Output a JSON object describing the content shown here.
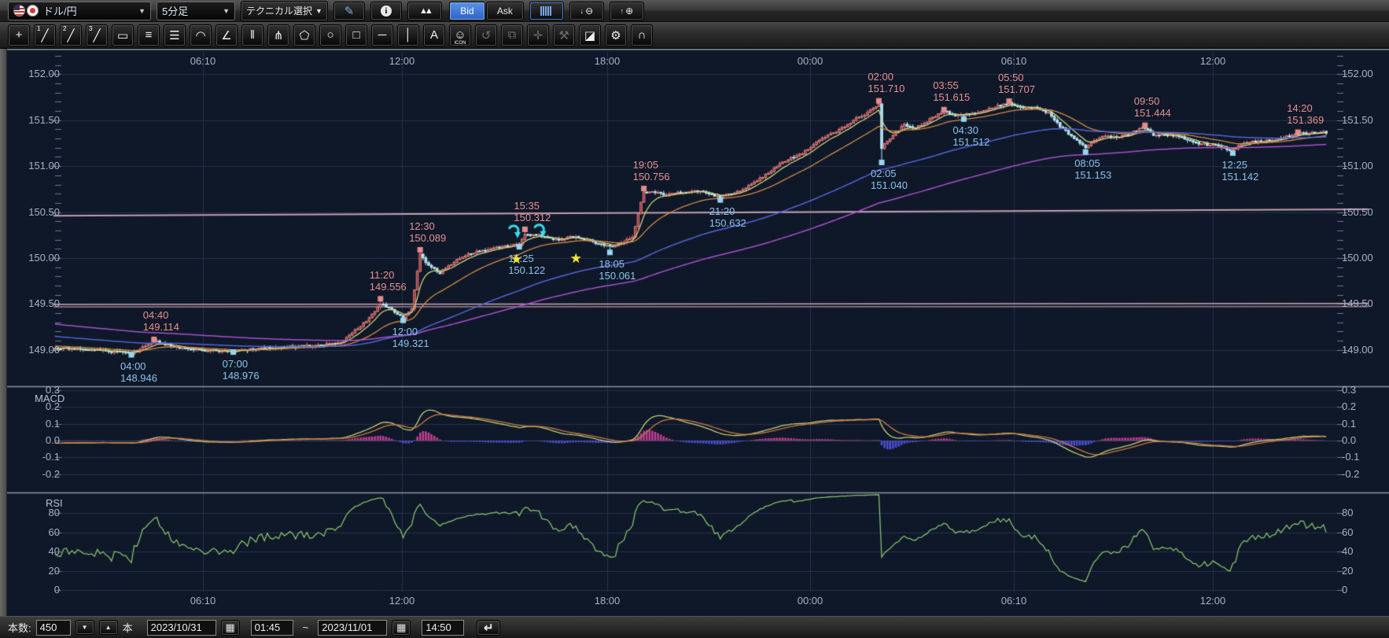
{
  "toolbar_top": {
    "symbol": {
      "value": "ドル/円"
    },
    "timeframe": {
      "value": "5分足"
    },
    "technical_label": "テクニカル選択",
    "bid_label": "Bid",
    "ask_label": "Ask"
  },
  "drawing_toolbar": {
    "tools": [
      {
        "name": "crosshair-tool",
        "glyph": "+"
      },
      {
        "name": "trendline1-tool",
        "glyph": "╱",
        "badge": "1"
      },
      {
        "name": "trendline2-tool",
        "glyph": "╱",
        "badge": "2"
      },
      {
        "name": "trendline3-tool",
        "glyph": "╱",
        "badge": "3"
      },
      {
        "name": "ruler-tool",
        "glyph": "▭"
      },
      {
        "name": "parallel-lines-tool",
        "glyph": "≡"
      },
      {
        "name": "fibo-lines-tool",
        "glyph": "☰"
      },
      {
        "name": "arc-tool",
        "glyph": "◠"
      },
      {
        "name": "fan-lines-tool",
        "glyph": "∠"
      },
      {
        "name": "vertical-lines-tool",
        "glyph": "‖"
      },
      {
        "name": "pitchfork-tool",
        "glyph": "⋔"
      },
      {
        "name": "pentagon-tool",
        "glyph": "⬠"
      },
      {
        "name": "ellipse-tool",
        "glyph": "○"
      },
      {
        "name": "rectangle-tool",
        "glyph": "□"
      },
      {
        "name": "horizontal-line-tool",
        "glyph": "─"
      },
      {
        "name": "vertical-line-tool",
        "glyph": "│"
      },
      {
        "name": "text-tool",
        "glyph": "A"
      },
      {
        "name": "icon-stamp-tool",
        "glyph": "☺",
        "sub": "ICON"
      },
      {
        "name": "history-tool",
        "glyph": "↺",
        "disabled": true
      },
      {
        "name": "copy-tool",
        "glyph": "⧉",
        "disabled": true
      },
      {
        "name": "pan-tool",
        "glyph": "✛",
        "disabled": true
      },
      {
        "name": "adjust-tool",
        "glyph": "⚒",
        "disabled": true
      },
      {
        "name": "eraser-tool",
        "glyph": "◪"
      },
      {
        "name": "settings-tool",
        "glyph": "⚙"
      },
      {
        "name": "magnet-tool",
        "glyph": "∩"
      }
    ]
  },
  "bottom_toolbar": {
    "bars_label": "本数:",
    "bars_value": "450",
    "bars_unit": "本",
    "date_from": "2023/10/31",
    "time_from": "01:45",
    "range_separator": "~",
    "date_to": "2023/11/01",
    "time_to": "14:50"
  },
  "chart_data": {
    "type": "candlestick+indicators",
    "symbol": "USD/JPY 5min",
    "bars": 450,
    "grid": true,
    "colors": {
      "bg": "#0f1828",
      "grid": "#26314a",
      "grid_zero": "#3a4660",
      "separator": "#8f949e",
      "axis_text": "#a9b2c4",
      "tick": "#6b7690",
      "bull_fill": "#8a3842",
      "bull_stroke": "#e27c7c",
      "bear_fill": "#a9dcee",
      "bear_stroke": "#bce8f5",
      "ma_fast": "#c6d37e",
      "ma_mid": "#cf8a48",
      "ma_slow": "#5463d8",
      "ma_slowest": "#a94fd0",
      "hline_pink": "#c49fb4",
      "hline_pink2": "#c9a4b6",
      "hline_gray": "#8d7383",
      "hist_pos": "#c13d92",
      "hist_neg": "#4d4ed2",
      "macd_line": "#c3cf74",
      "macd_signal": "#cd7947",
      "rsi_line": "#84c06c",
      "sig_high": "#e89090",
      "sig_low": "#8ac4ec",
      "marker_high": "#e58b8b",
      "marker_low": "#97d5f2",
      "star": "#f2e23c",
      "arrow": "#3ad8ea"
    },
    "time_axis": {
      "ticks": [
        {
          "label": "06:10",
          "x": 258
        },
        {
          "label": "12:00",
          "x": 511
        },
        {
          "label": "18:00",
          "x": 772
        },
        {
          "label": "00:00",
          "x": 1030
        },
        {
          "label": "06:10",
          "x": 1289
        },
        {
          "label": "12:00",
          "x": 1542
        }
      ]
    },
    "price_axis": {
      "ylim": [
        148.604,
        152.277
      ],
      "ticks": [
        {
          "label": "152.00",
          "value": 152.0
        },
        {
          "label": "151.50",
          "value": 151.5
        },
        {
          "label": "151.00",
          "value": 151.0
        },
        {
          "label": "150.50",
          "value": 150.5
        },
        {
          "label": "150.00",
          "value": 150.0
        },
        {
          "label": "149.50",
          "value": 149.5
        },
        {
          "label": "149.00",
          "value": 149.0
        }
      ],
      "minor_step": 0.1
    },
    "macd": {
      "label": "MACD",
      "params": [
        12,
        26,
        9
      ],
      "ylim": [
        -0.31,
        0.324
      ],
      "ticks": [
        {
          "label": "0.3",
          "value": 0.3
        },
        {
          "label": "0.2",
          "value": 0.2
        },
        {
          "label": "0.1",
          "value": 0.1
        },
        {
          "label": "0.0",
          "value": 0.0
        },
        {
          "label": "-0.1",
          "value": -0.1
        },
        {
          "label": "-0.2",
          "value": -0.2
        }
      ]
    },
    "rsi": {
      "label": "RSI",
      "params": [
        14
      ],
      "ylim": [
        -1.4,
        101.5
      ],
      "ticks": [
        {
          "label": "80",
          "value": 80
        },
        {
          "label": "60",
          "value": 60
        },
        {
          "label": "40",
          "value": 40
        },
        {
          "label": "20",
          "value": 20
        },
        {
          "label": "0",
          "value": 0
        }
      ]
    },
    "moving_averages": [
      {
        "name": "ema-fast",
        "period": 7,
        "color_key": "ma_fast",
        "width": 1.3
      },
      {
        "name": "ema-mid",
        "period": 26,
        "color_key": "ma_mid",
        "width": 1.3
      },
      {
        "name": "ema-slow",
        "period": 95,
        "color_key": "ma_slow",
        "width": 1.5
      },
      {
        "name": "ema-slowest",
        "period": 170,
        "color_key": "ma_slowest",
        "width": 1.5
      }
    ],
    "horizontal_lines": [
      {
        "p1": 150.46,
        "p2": 150.53,
        "color_key": "hline_pink",
        "width": 2
      },
      {
        "p1": 149.495,
        "p2": 149.505,
        "color_key": "hline_pink2",
        "width": 1.6
      },
      {
        "p1": 149.468,
        "p2": 149.472,
        "color_key": "hline_gray",
        "width": 1.6
      }
    ],
    "price_anchors": [
      [
        -240,
        150.1
      ],
      [
        -160,
        149.55
      ],
      [
        -80,
        149.22
      ],
      [
        -30,
        149.08
      ],
      [
        0,
        149.02
      ],
      [
        14,
        149.0
      ],
      [
        27,
        148.96
      ],
      [
        35,
        149.1
      ],
      [
        44,
        149.02
      ],
      [
        55,
        148.99
      ],
      [
        63,
        148.99
      ],
      [
        75,
        149.02
      ],
      [
        88,
        149.04
      ],
      [
        100,
        149.07
      ],
      [
        108,
        149.25
      ],
      [
        115,
        149.5
      ],
      [
        119,
        149.44
      ],
      [
        123,
        149.34
      ],
      [
        126,
        149.45
      ],
      [
        129,
        150.04
      ],
      [
        132,
        149.92
      ],
      [
        136,
        149.84
      ],
      [
        141,
        149.96
      ],
      [
        147,
        150.05
      ],
      [
        154,
        150.1
      ],
      [
        160,
        150.13
      ],
      [
        164,
        150.15
      ],
      [
        166,
        150.26
      ],
      [
        171,
        150.25
      ],
      [
        177,
        150.2
      ],
      [
        183,
        150.23
      ],
      [
        189,
        150.18
      ],
      [
        194,
        150.14
      ],
      [
        196,
        150.12
      ],
      [
        199,
        150.15
      ],
      [
        204,
        150.22
      ],
      [
        207,
        150.6
      ],
      [
        208,
        150.71
      ],
      [
        211,
        150.72
      ],
      [
        216,
        150.69
      ],
      [
        221,
        150.71
      ],
      [
        227,
        150.73
      ],
      [
        231,
        150.7
      ],
      [
        235,
        150.66
      ],
      [
        240,
        150.71
      ],
      [
        246,
        150.8
      ],
      [
        252,
        150.93
      ],
      [
        258,
        151.06
      ],
      [
        264,
        151.14
      ],
      [
        270,
        151.29
      ],
      [
        276,
        151.37
      ],
      [
        282,
        151.5
      ],
      [
        287,
        151.58
      ],
      [
        291,
        151.68
      ],
      [
        292,
        151.2
      ],
      [
        294,
        151.28
      ],
      [
        297,
        151.36
      ],
      [
        300,
        151.45
      ],
      [
        304,
        151.41
      ],
      [
        308,
        151.49
      ],
      [
        311,
        151.54
      ],
      [
        314,
        151.6
      ],
      [
        317,
        151.56
      ],
      [
        321,
        151.55
      ],
      [
        326,
        151.59
      ],
      [
        330,
        151.62
      ],
      [
        334,
        151.66
      ],
      [
        337,
        151.68
      ],
      [
        342,
        151.64
      ],
      [
        347,
        151.63
      ],
      [
        351,
        151.58
      ],
      [
        355,
        151.43
      ],
      [
        359,
        151.33
      ],
      [
        362,
        151.26
      ],
      [
        364,
        151.21
      ],
      [
        367,
        151.27
      ],
      [
        371,
        151.33
      ],
      [
        375,
        151.31
      ],
      [
        379,
        151.34
      ],
      [
        382,
        151.39
      ],
      [
        385,
        151.42
      ],
      [
        388,
        151.34
      ],
      [
        392,
        151.33
      ],
      [
        396,
        151.34
      ],
      [
        400,
        151.29
      ],
      [
        404,
        151.25
      ],
      [
        408,
        151.23
      ],
      [
        412,
        151.21
      ],
      [
        414,
        151.18
      ],
      [
        416,
        151.18
      ],
      [
        419,
        151.23
      ],
      [
        423,
        151.27
      ],
      [
        427,
        151.27
      ],
      [
        431,
        151.29
      ],
      [
        435,
        151.32
      ],
      [
        439,
        151.35
      ],
      [
        444,
        151.36
      ],
      [
        449,
        151.37
      ]
    ],
    "signals": [
      {
        "time": "04:40",
        "price": "149.114",
        "bar": 35,
        "value": 149.114,
        "side": "high"
      },
      {
        "time": "11:20",
        "price": "149.556",
        "bar": 115,
        "value": 149.556,
        "side": "high"
      },
      {
        "time": "12:30",
        "price": "150.089",
        "bar": 129,
        "value": 150.089,
        "side": "high"
      },
      {
        "time": "15:35",
        "price": "150.312",
        "bar": 166,
        "value": 150.312,
        "side": "high"
      },
      {
        "time": "19:05",
        "price": "150.756",
        "bar": 208,
        "value": 150.756,
        "side": "high"
      },
      {
        "time": "02:00",
        "price": "151.710",
        "bar": 291,
        "value": 151.71,
        "side": "high"
      },
      {
        "time": "03:55",
        "price": "151.615",
        "bar": 314,
        "value": 151.615,
        "side": "high"
      },
      {
        "time": "05:50",
        "price": "151.707",
        "bar": 337,
        "value": 151.707,
        "side": "high"
      },
      {
        "time": "09:50",
        "price": "151.444",
        "bar": 385,
        "value": 151.444,
        "side": "high"
      },
      {
        "time": "14:20",
        "price": "151.369",
        "bar": 439,
        "value": 151.369,
        "side": "high"
      },
      {
        "time": "04:00",
        "price": "148.946",
        "bar": 27,
        "value": 148.946,
        "side": "low"
      },
      {
        "time": "07:00",
        "price": "148.976",
        "bar": 63,
        "value": 148.976,
        "side": "low"
      },
      {
        "time": "12:00",
        "price": "149.321",
        "bar": 123,
        "value": 149.321,
        "side": "low"
      },
      {
        "time": "15:25",
        "price": "150.122",
        "bar": 164,
        "value": 150.122,
        "side": "low"
      },
      {
        "time": "18:05",
        "price": "150.061",
        "bar": 196,
        "value": 150.061,
        "side": "low"
      },
      {
        "time": "21:20",
        "price": "150.632",
        "bar": 235,
        "value": 150.632,
        "side": "low"
      },
      {
        "time": "02:05",
        "price": "151.040",
        "bar": 292,
        "value": 151.04,
        "side": "low"
      },
      {
        "time": "04:30",
        "price": "151.512",
        "bar": 321,
        "value": 151.512,
        "side": "low"
      },
      {
        "time": "08:05",
        "price": "151.153",
        "bar": 364,
        "value": 151.153,
        "side": "low"
      },
      {
        "time": "12:25",
        "price": "151.142",
        "bar": 416,
        "value": 151.142,
        "side": "low"
      }
    ],
    "stars": [
      {
        "bar": 163,
        "value": 149.98
      },
      {
        "bar": 184,
        "value": 149.99
      }
    ],
    "arrows": [
      {
        "bar": 162,
        "value": 150.3
      },
      {
        "bar": 171,
        "value": 150.31
      }
    ]
  }
}
